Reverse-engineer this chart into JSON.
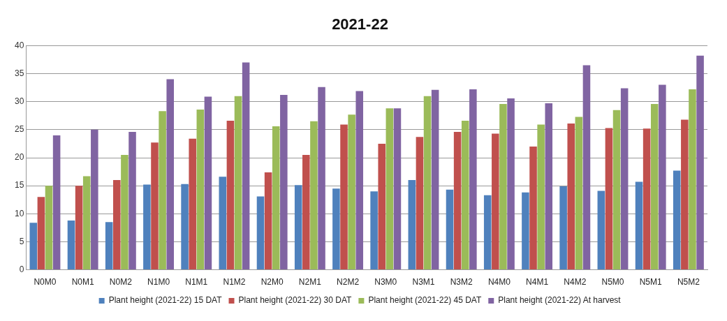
{
  "chart_data": {
    "type": "bar",
    "title": "2021-22",
    "categories": [
      "N0M0",
      "N0M1",
      "N0M2",
      "N1M0",
      "N1M1",
      "N1M2",
      "N2M0",
      "N2M1",
      "N2M2",
      "N3M0",
      "N3M1",
      "N3M2",
      "N4M0",
      "N4M1",
      "N4M2",
      "N5M0",
      "N5M1",
      "N5M2"
    ],
    "series": [
      {
        "name": "Plant height (2021-22) 15 DAT",
        "color": "#4f81bd",
        "values": [
          8.4,
          8.8,
          8.5,
          15.2,
          15.3,
          16.6,
          13.1,
          15.1,
          14.5,
          14.0,
          16.0,
          14.3,
          13.3,
          13.8,
          14.9,
          14.1,
          15.7,
          17.7
        ]
      },
      {
        "name": "Plant height (2021-22) 30 DAT",
        "color": "#c0504d",
        "values": [
          13,
          15,
          16,
          22.7,
          23.4,
          26.6,
          17.4,
          20.5,
          25.9,
          22.5,
          23.7,
          24.6,
          24.3,
          22.0,
          26.1,
          25.3,
          25.2,
          26.8
        ]
      },
      {
        "name": "Plant height (2021-22) 45 DAT",
        "color": "#9bbb59",
        "values": [
          15,
          16.7,
          20.5,
          28.3,
          28.6,
          31.0,
          25.6,
          26.5,
          27.7,
          28.8,
          31.0,
          26.6,
          29.6,
          25.9,
          27.3,
          28.5,
          29.6,
          32.2
        ]
      },
      {
        "name": "Plant height (2021-22) At harvest",
        "color": "#8064a2",
        "values": [
          24,
          25,
          24.6,
          34,
          30.9,
          37,
          31.2,
          32.6,
          31.9,
          28.8,
          32.1,
          32.2,
          30.6,
          29.7,
          36.5,
          32.4,
          33,
          38.2
        ]
      }
    ],
    "ylim": [
      0,
      40
    ],
    "yticks": [
      0,
      5,
      10,
      15,
      20,
      25,
      30,
      35,
      40
    ],
    "grid": "y",
    "legend": "bottom"
  }
}
